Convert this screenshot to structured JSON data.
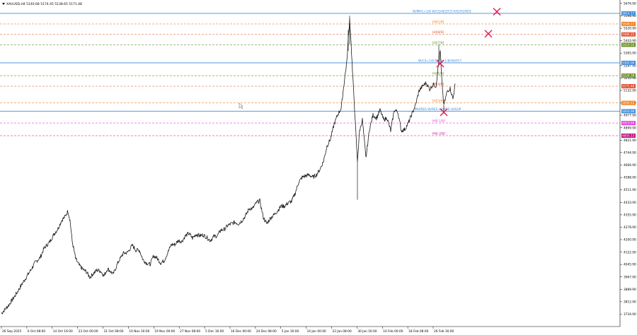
{
  "chart_data": {
    "type": "candlestick",
    "instrument": "XAUUSD,H4",
    "ohlc": {
      "open": 5140.68,
      "high": 5174.45,
      "low": 5138.65,
      "close": 5171.48
    },
    "title": "XAUUSD,H4  5140.68 5174.45 5138.65 5171.48",
    "ylim": [
      3680,
      5680
    ],
    "y_ticks": [
      "5676.90",
      "5598.90",
      "5520.90",
      "5443.90",
      "5365.90",
      "5287.90",
      "5210.90",
      "5132.90",
      "5054.90",
      "4977.90",
      "4899.90",
      "4821.90",
      "4744.90",
      "4666.90",
      "4588.90",
      "4511.90",
      "4433.90",
      "4355.90",
      "4278.90",
      "4200.90",
      "4122.90",
      "4045.90",
      "3967.90",
      "3889.90",
      "3812.90",
      "3734.90"
    ],
    "x_ticks": [
      "26 Sep 2025",
      "6 Oct 08:00",
      "14 Oct 16:00",
      "23 Oct 00:00",
      "31 Oct 08:00",
      "10 Nov 16:00",
      "19 Nov 00:00",
      "27 Nov 08:00",
      "5 Dec 16:00",
      "16 Dec 00:00",
      "24 Dec 08:00",
      "5 Jan 16:00",
      "14 Jan 00:00",
      "22 Jan 08:00",
      "30 Jan 16:00",
      "10 Feb 00:00",
      "18 Feb 08:00",
      "26 Feb 16:00"
    ],
    "price_path": [
      [
        0,
        3740
      ],
      [
        10,
        3790
      ],
      [
        20,
        3855
      ],
      [
        30,
        3930
      ],
      [
        40,
        4000
      ],
      [
        48,
        4060
      ],
      [
        55,
        4090
      ],
      [
        60,
        4145
      ],
      [
        68,
        4185
      ],
      [
        75,
        4240
      ],
      [
        80,
        4270
      ],
      [
        85,
        4320
      ],
      [
        90,
        4345
      ],
      [
        94,
        4380
      ],
      [
        97,
        4320
      ],
      [
        100,
        4190
      ],
      [
        105,
        4080
      ],
      [
        110,
        4040
      ],
      [
        115,
        4015
      ],
      [
        120,
        4000
      ],
      [
        125,
        3965
      ],
      [
        130,
        3990
      ],
      [
        135,
        4010
      ],
      [
        140,
        4005
      ],
      [
        145,
        3975
      ],
      [
        150,
        4020
      ],
      [
        158,
        3985
      ],
      [
        165,
        4060
      ],
      [
        172,
        4115
      ],
      [
        178,
        4120
      ],
      [
        185,
        4165
      ],
      [
        190,
        4135
      ],
      [
        195,
        4135
      ],
      [
        200,
        4075
      ],
      [
        205,
        4055
      ],
      [
        210,
        4045
      ],
      [
        215,
        4100
      ],
      [
        220,
        4085
      ],
      [
        225,
        4055
      ],
      [
        230,
        4070
      ],
      [
        235,
        4120
      ],
      [
        240,
        4170
      ],
      [
        245,
        4170
      ],
      [
        250,
        4195
      ],
      [
        255,
        4190
      ],
      [
        260,
        4225
      ],
      [
        265,
        4240
      ],
      [
        270,
        4210
      ],
      [
        275,
        4235
      ],
      [
        280,
        4225
      ],
      [
        285,
        4230
      ],
      [
        290,
        4215
      ],
      [
        295,
        4195
      ],
      [
        300,
        4220
      ],
      [
        305,
        4225
      ],
      [
        310,
        4260
      ],
      [
        315,
        4265
      ],
      [
        320,
        4290
      ],
      [
        325,
        4300
      ],
      [
        330,
        4310
      ],
      [
        335,
        4300
      ],
      [
        340,
        4320
      ],
      [
        345,
        4350
      ],
      [
        350,
        4395
      ],
      [
        355,
        4395
      ],
      [
        360,
        4430
      ],
      [
        365,
        4445
      ],
      [
        370,
        4340
      ],
      [
        375,
        4300
      ],
      [
        380,
        4335
      ],
      [
        385,
        4355
      ],
      [
        390,
        4380
      ],
      [
        395,
        4410
      ],
      [
        400,
        4410
      ],
      [
        405,
        4430
      ],
      [
        410,
        4440
      ],
      [
        415,
        4490
      ],
      [
        420,
        4560
      ],
      [
        425,
        4590
      ],
      [
        430,
        4600
      ],
      [
        435,
        4605
      ],
      [
        440,
        4590
      ],
      [
        445,
        4605
      ],
      [
        450,
        4640
      ],
      [
        455,
        4690
      ],
      [
        460,
        4785
      ],
      [
        465,
        4830
      ],
      [
        470,
        4920
      ],
      [
        475,
        4980
      ],
      [
        480,
        5020
      ],
      [
        485,
        5210
      ],
      [
        488,
        5310
      ],
      [
        490,
        5450
      ],
      [
        492,
        5580
      ],
      [
        494,
        5430
      ],
      [
        496,
        5250
      ],
      [
        498,
        5100
      ],
      [
        500,
        4930
      ],
      [
        503,
        4690
      ],
      [
        506,
        4880
      ],
      [
        510,
        4950
      ],
      [
        515,
        4710
      ],
      [
        520,
        4890
      ],
      [
        525,
        4980
      ],
      [
        530,
        4960
      ],
      [
        535,
        5010
      ],
      [
        540,
        4950
      ],
      [
        545,
        4960
      ],
      [
        550,
        4880
      ],
      [
        555,
        5010
      ],
      [
        560,
        5000
      ],
      [
        565,
        4880
      ],
      [
        570,
        4890
      ],
      [
        575,
        4930
      ],
      [
        580,
        4985
      ],
      [
        585,
        5040
      ],
      [
        590,
        5130
      ],
      [
        595,
        5160
      ],
      [
        600,
        5180
      ],
      [
        605,
        5140
      ],
      [
        610,
        5170
      ],
      [
        614,
        5160
      ],
      [
        618,
        5310
      ],
      [
        620,
        5380
      ],
      [
        622,
        5210
      ],
      [
        625,
        5040
      ],
      [
        630,
        5130
      ],
      [
        634,
        5145
      ],
      [
        638,
        5080
      ],
      [
        641,
        5175
      ]
    ],
    "levels": [
      {
        "price": 5614,
        "label": "W/MH1+1/8 W/CS/AEZ/CS H/G/H1/RES",
        "tag": "5614.17",
        "color": "#3c8cdc",
        "style": "solid"
      },
      {
        "price": 5548,
        "label": "H4[1/8]",
        "tag": "5549.17",
        "color": "#f08020",
        "style": "dashed"
      },
      {
        "price": 5483,
        "label": "H4[8/8]",
        "tag": "5484.25",
        "color": "#e05030",
        "style": "dashed"
      },
      {
        "price": 5418,
        "label": "H4[7/8]",
        "tag": "5419.50",
        "color": "#6b8e23",
        "style": "dashed"
      },
      {
        "price": 5305,
        "label": "W/CS+1/8 D/CS+1/8/H4/PCT",
        "tag": "5305.00",
        "color": "#3c8cdc",
        "style": "solid"
      },
      {
        "price": 5225,
        "label": "H4[5/8]",
        "tag": "5224.38",
        "color": "#6b8e23",
        "style": "dashed"
      },
      {
        "price": 5159,
        "label": "H4[4/8]",
        "tag": "5171.48",
        "color": "#e05030",
        "style": "dashed"
      },
      {
        "price": 5055,
        "label": "H4[3/8]",
        "tag": "5094.63",
        "color": "#f08020",
        "style": "dashed"
      },
      {
        "price": 5003,
        "label": "MH/RES W/RES H4/RES H4SUP",
        "tag": "5003.99",
        "color": "#3c8cdc",
        "style": "solid"
      },
      {
        "price": 4929,
        "label": "H4[-1/8]",
        "tag": "4919.69",
        "color": "#e040e0",
        "style": "dashed"
      },
      {
        "price": 4850,
        "label": "H4[-2/8]",
        "tag": "4855.13",
        "color": "#c01080",
        "style": "dashed"
      }
    ],
    "markers": [
      {
        "x_index": 700,
        "price": 5625
      },
      {
        "x_index": 688,
        "price": 5487
      },
      {
        "x_index": 620,
        "price": 5301
      },
      {
        "x_index": 625,
        "price": 4996
      }
    ]
  }
}
